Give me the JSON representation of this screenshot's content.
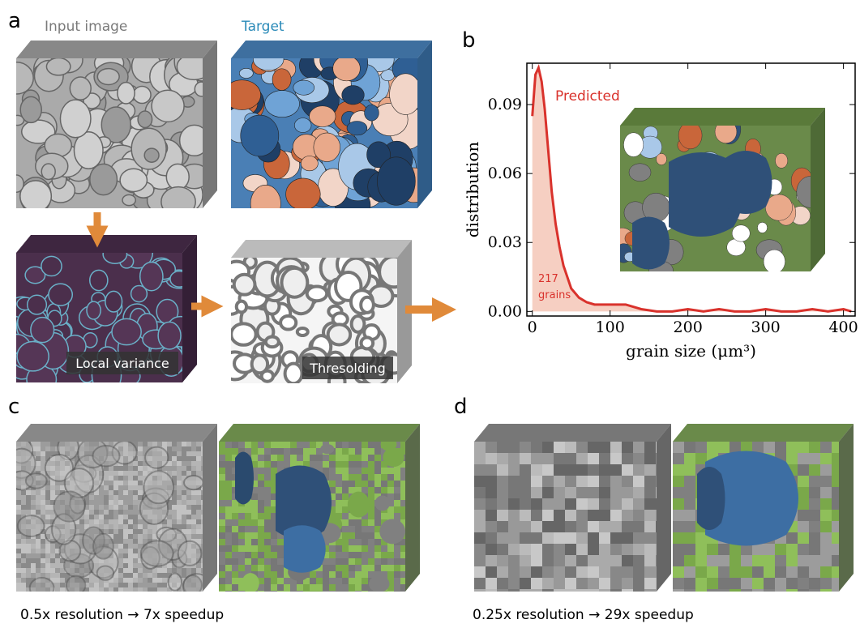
{
  "panels": {
    "a": {
      "label": "a",
      "input_title": "Input image",
      "target_title": "Target",
      "variance_label": "Local variance",
      "threshold_label": "Thresolding"
    },
    "b": {
      "label": "b"
    },
    "c": {
      "label": "c",
      "caption": "0.5x resolution → 7x speedup"
    },
    "d": {
      "label": "d",
      "caption": "0.25x resolution → 29x speedup"
    }
  },
  "chart_data": {
    "type": "line",
    "x": [
      0,
      4,
      8,
      12,
      16,
      20,
      25,
      30,
      35,
      40,
      50,
      60,
      70,
      80,
      90,
      100,
      120,
      140,
      160,
      180,
      200,
      220,
      240,
      260,
      280,
      300,
      320,
      340,
      360,
      380,
      400,
      410
    ],
    "series": [
      {
        "name": "Predicted",
        "color": "#d9322c",
        "values": [
          0.085,
          0.103,
          0.106,
          0.1,
          0.088,
          0.072,
          0.052,
          0.038,
          0.028,
          0.02,
          0.01,
          0.006,
          0.004,
          0.003,
          0.003,
          0.003,
          0.003,
          0.001,
          0.0,
          0.0,
          0.001,
          0.0,
          0.001,
          0.0,
          0.0,
          0.001,
          0.0,
          0.0,
          0.001,
          0.0,
          0.001,
          0.0
        ]
      }
    ],
    "annotation_lines": [
      "217",
      "grains"
    ],
    "xlabel": "grain size (μm³)",
    "ylabel": "distribution",
    "xlim": [
      -7,
      415
    ],
    "ylim": [
      -0.002,
      0.108
    ],
    "xticks": [
      0,
      100,
      200,
      300,
      400
    ],
    "yticks": [
      {
        "value": 0,
        "label": "0.00"
      },
      0.03,
      0.06,
      0.09
    ],
    "area_color": "#f6cfc2"
  }
}
